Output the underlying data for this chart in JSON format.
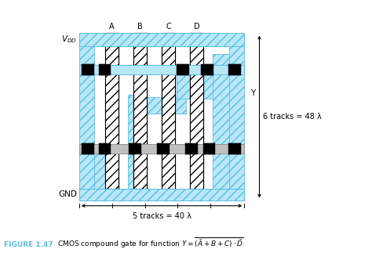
{
  "fig_width": 4.74,
  "fig_height": 3.23,
  "dpi": 100,
  "bg_color": "#ffffff",
  "cyan_fill": "#b8e8f8",
  "cyan_edge": "#5bbde0",
  "gray_fill": "#c0c0c0",
  "gray_edge": "#909090",
  "black": "#000000",
  "white": "#ffffff",
  "caption_fig": "FIGURE 1.47",
  "caption_color": "#5bbde0",
  "label_tracks_h": "6 tracks = 48 λ",
  "label_tracks_w": "5 tracks = 40 λ"
}
